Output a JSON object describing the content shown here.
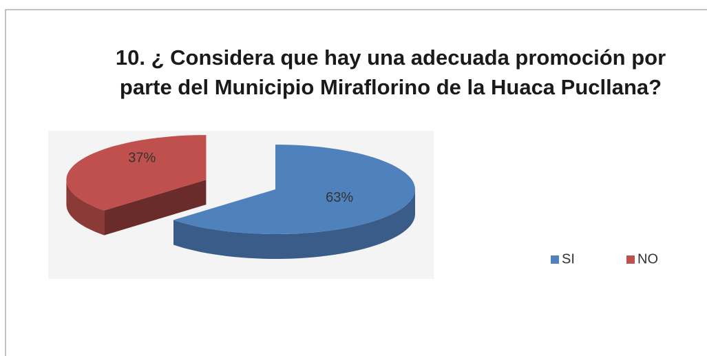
{
  "chart_data": {
    "type": "pie3d",
    "title": "10. ¿ Considera que hay una adecuada promoción por parte del Municipio Miraflorino de la Huaca Pucllana?",
    "categories": [
      "SI",
      "NO"
    ],
    "values": [
      63,
      37
    ],
    "value_labels": [
      "63%",
      "37%"
    ],
    "colors": [
      "#4f81bd",
      "#c0504d"
    ],
    "legend": "right"
  }
}
